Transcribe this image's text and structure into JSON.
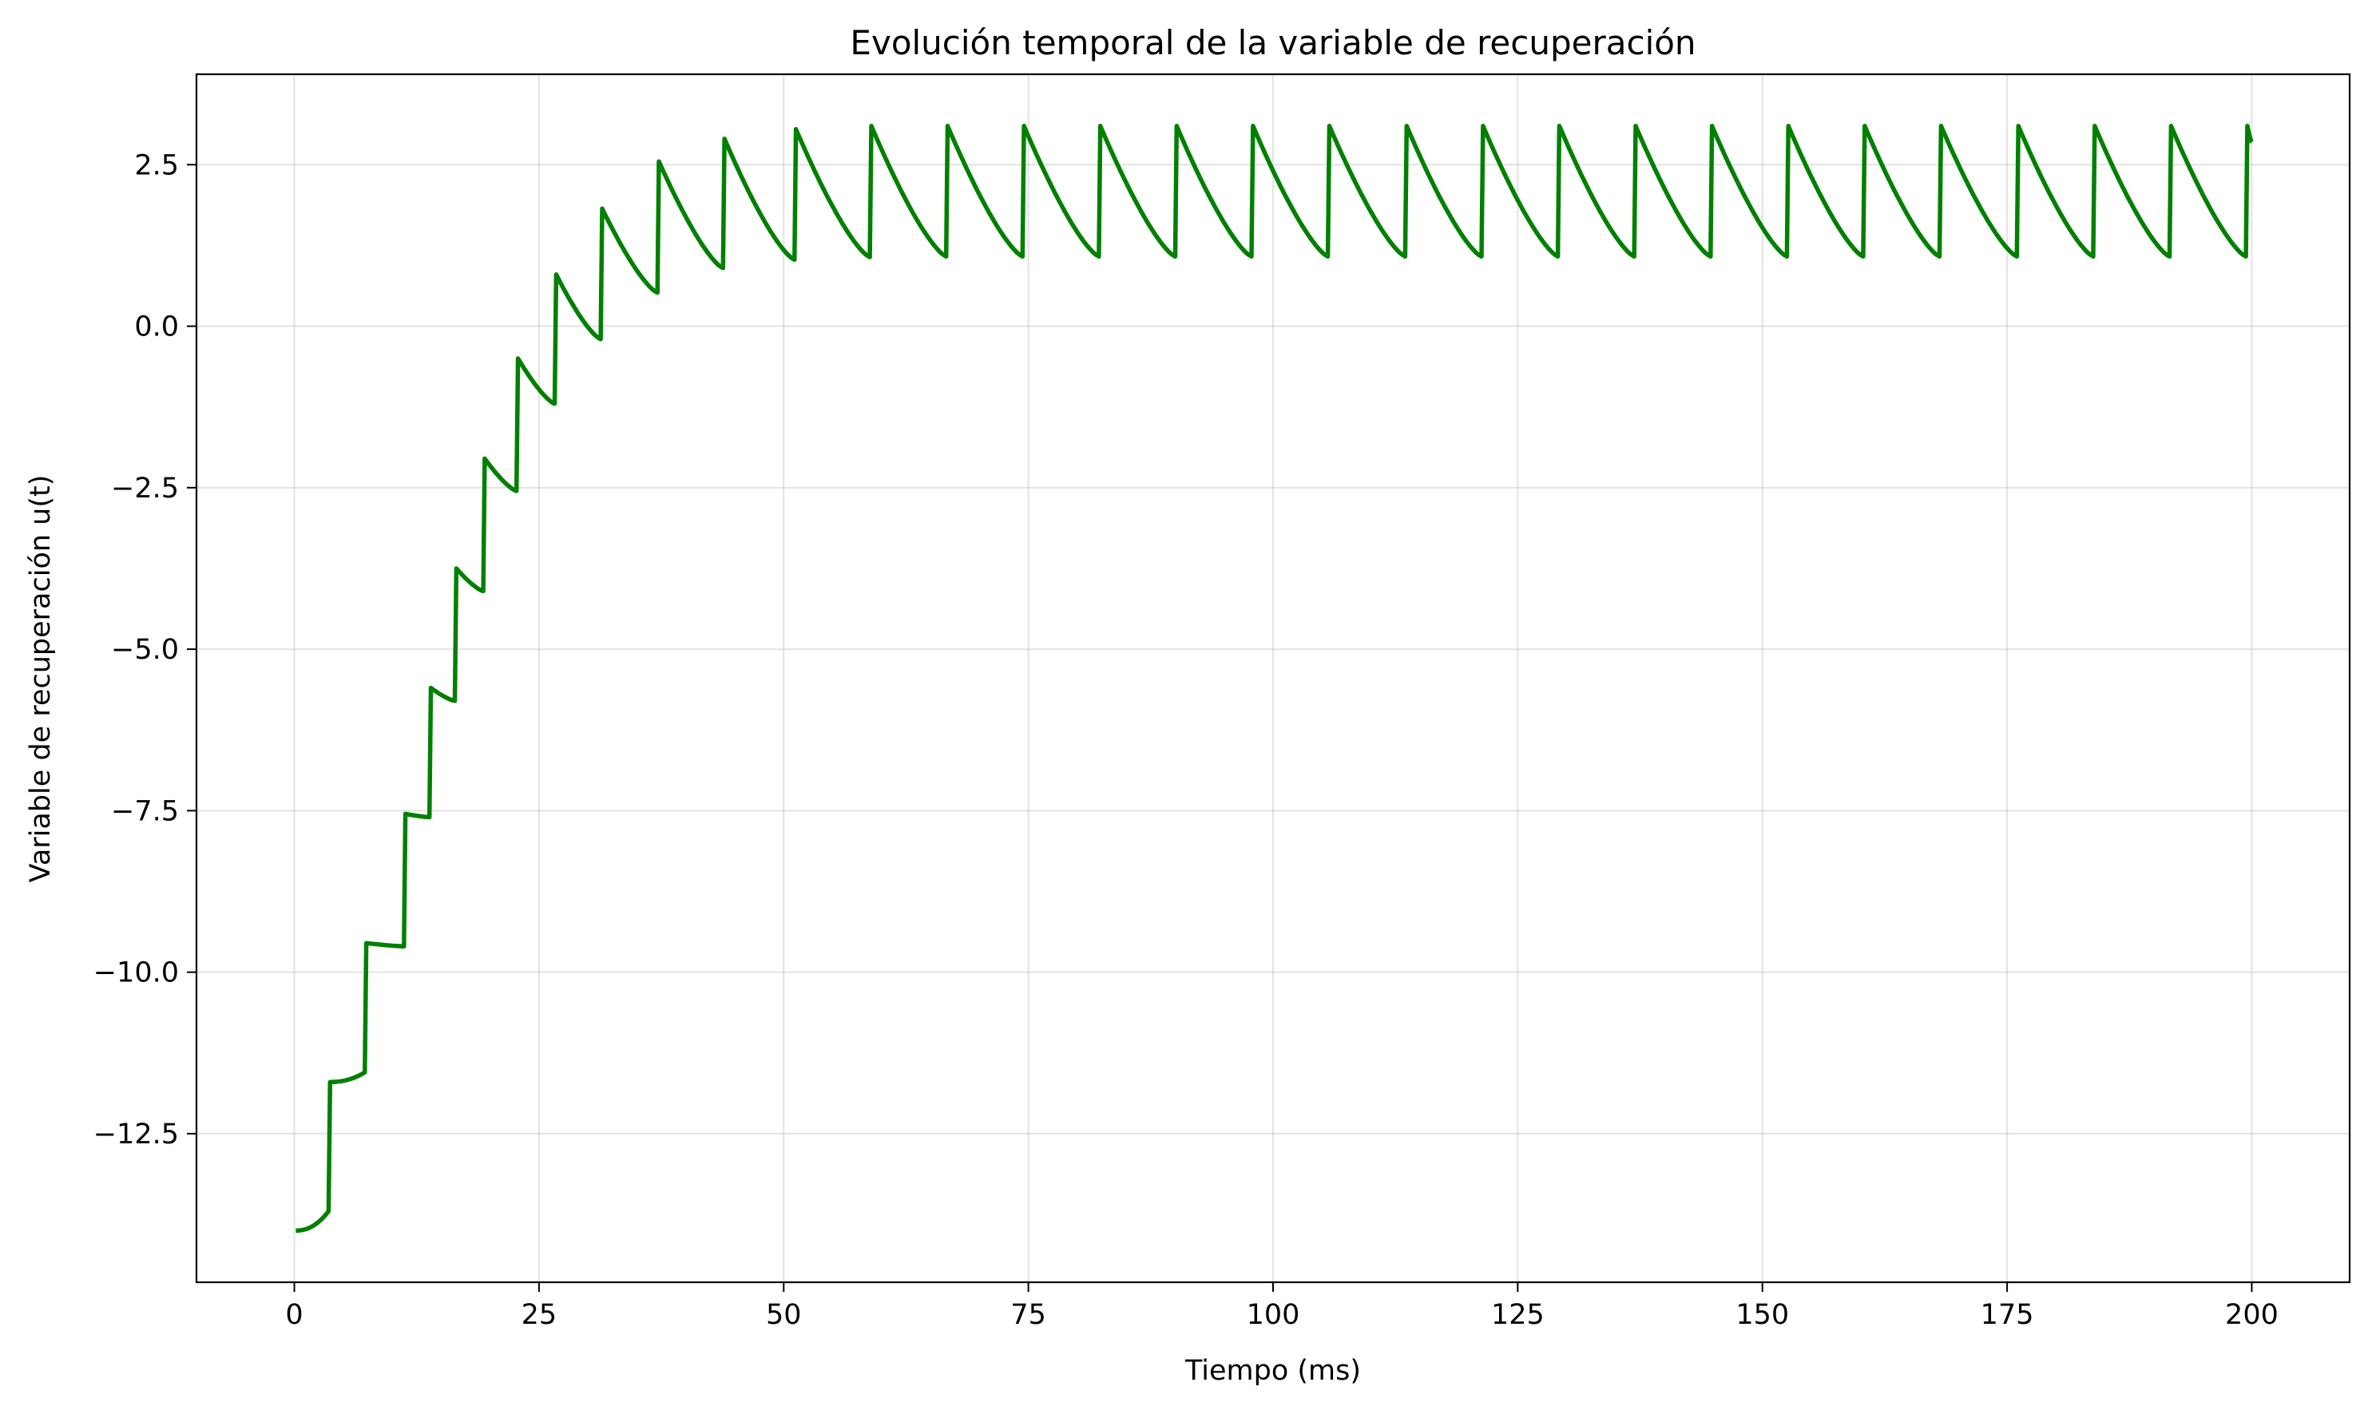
{
  "chart_data": {
    "type": "line",
    "title": "Evolución temporal de la variable de recuperación",
    "xlabel": "Tiempo (ms)",
    "ylabel": "Variable de recuperación u(t)",
    "xlim": [
      -10,
      210
    ],
    "ylim": [
      -14.8,
      3.9
    ],
    "xticks": [
      0,
      25,
      50,
      75,
      100,
      125,
      150,
      175,
      200
    ],
    "xtick_labels": [
      "0",
      "25",
      "50",
      "75",
      "100",
      "125",
      "150",
      "175",
      "200"
    ],
    "yticks": [
      2.5,
      0.0,
      -2.5,
      -5.0,
      -7.5,
      -10.0,
      -12.5
    ],
    "ytick_labels": [
      "2.5",
      "0.0",
      "−2.5",
      "−5.0",
      "−7.5",
      "−10.0",
      "−12.5"
    ],
    "grid": true,
    "series": [
      {
        "color": "#008000",
        "spikes": [
          {
            "t": 0.0,
            "pre": null,
            "post": -14.0
          },
          {
            "t": 3.5,
            "pre": -13.7,
            "post": -11.7
          },
          {
            "t": 7.2,
            "pre": -11.55,
            "post": -9.55
          },
          {
            "t": 11.2,
            "pre": -9.6,
            "post": -7.55
          },
          {
            "t": 13.8,
            "pre": -7.6,
            "post": -5.6
          },
          {
            "t": 16.4,
            "pre": -5.8,
            "post": -3.75
          },
          {
            "t": 19.3,
            "pre": -4.1,
            "post": -2.05
          },
          {
            "t": 22.7,
            "pre": -2.55,
            "post": -0.5
          },
          {
            "t": 26.6,
            "pre": -1.2,
            "post": 0.8
          },
          {
            "t": 31.3,
            "pre": -0.2,
            "post": 1.82
          },
          {
            "t": 37.1,
            "pre": 0.52,
            "post": 2.55
          },
          {
            "t": 43.8,
            "pre": 0.9,
            "post": 2.9
          },
          {
            "t": 51.1,
            "pre": 1.03,
            "post": 3.05
          },
          {
            "t": 58.8,
            "pre": 1.07,
            "post": 3.1
          },
          {
            "t": 66.6,
            "pre": 1.08,
            "post": 3.1
          },
          {
            "t": 74.4,
            "pre": 1.08,
            "post": 3.1
          },
          {
            "t": 82.2,
            "pre": 1.08,
            "post": 3.1
          },
          {
            "t": 90.0,
            "pre": 1.08,
            "post": 3.1
          },
          {
            "t": 97.8,
            "pre": 1.08,
            "post": 3.1
          },
          {
            "t": 105.6,
            "pre": 1.08,
            "post": 3.1
          },
          {
            "t": 113.5,
            "pre": 1.08,
            "post": 3.1
          },
          {
            "t": 121.3,
            "pre": 1.08,
            "post": 3.1
          },
          {
            "t": 129.1,
            "pre": 1.08,
            "post": 3.1
          },
          {
            "t": 136.9,
            "pre": 1.08,
            "post": 3.1
          },
          {
            "t": 144.7,
            "pre": 1.08,
            "post": 3.1
          },
          {
            "t": 152.5,
            "pre": 1.08,
            "post": 3.1
          },
          {
            "t": 160.3,
            "pre": 1.08,
            "post": 3.1
          },
          {
            "t": 168.1,
            "pre": 1.08,
            "post": 3.1
          },
          {
            "t": 176.0,
            "pre": 1.08,
            "post": 3.1
          },
          {
            "t": 183.8,
            "pre": 1.08,
            "post": 3.1
          },
          {
            "t": 191.6,
            "pre": 1.08,
            "post": 3.1
          },
          {
            "t": 199.4,
            "pre": 1.08,
            "post": 3.1
          }
        ],
        "end": {
          "t": 200.0,
          "value": 2.85
        }
      }
    ]
  }
}
